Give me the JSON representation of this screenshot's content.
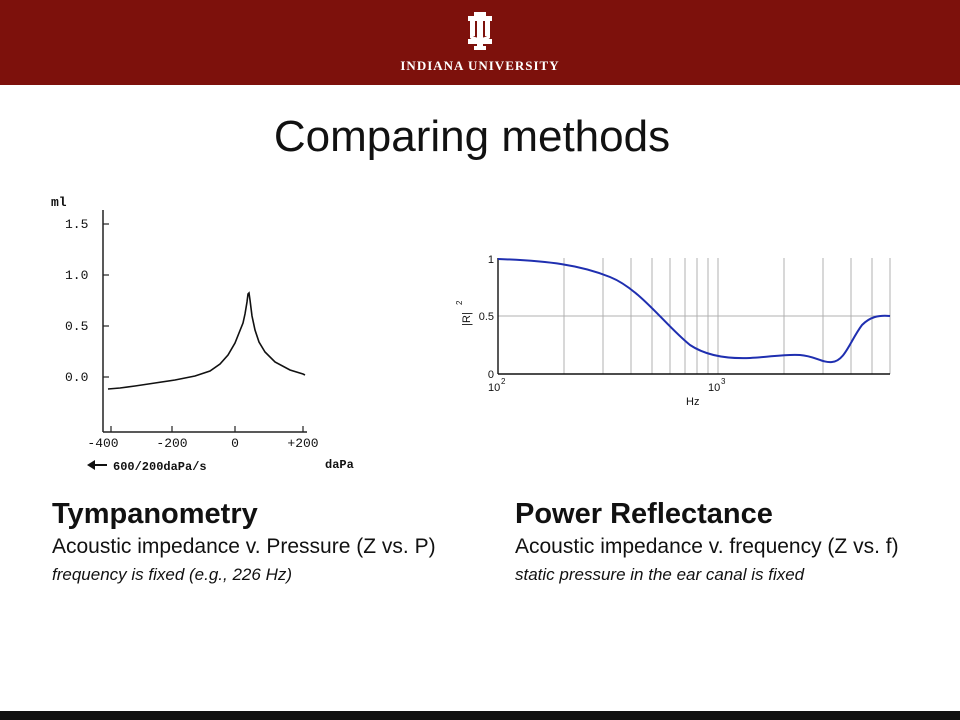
{
  "header": {
    "university": "INDIANA UNIVERSITY",
    "logo_icon": "iu-trident-icon",
    "banner_color": "#7d110c"
  },
  "slide": {
    "title": "Comparing methods"
  },
  "tympanogram": {
    "y_unit": "ml",
    "y_ticks": [
      "1.5",
      "1.0",
      "0.5",
      "0.0"
    ],
    "x_ticks": [
      "-400",
      "-200",
      "0",
      "+200"
    ],
    "x_unit": "daPa",
    "sweep_label": "600/200daPa/s",
    "arrow_icon": "left-arrow-icon"
  },
  "reflectance": {
    "y_label": "|R|",
    "y_label_exp": "2",
    "y_ticks": [
      "1",
      "0.5",
      "0"
    ],
    "x_ticks": [
      {
        "base": "10",
        "exp": "2"
      },
      {
        "base": "10",
        "exp": "3"
      }
    ],
    "x_label": "Hz",
    "curve_color": "#1f2fb0"
  },
  "left": {
    "heading": "Tympanometry",
    "description": "Acoustic impedance v. Pressure (Z vs. P)",
    "note": "frequency is fixed (e.g., 226 Hz)"
  },
  "right": {
    "heading": "Power Reflectance",
    "description": "Acoustic impedance v. frequency (Z vs. f)",
    "note": "static pressure in the ear canal is fixed"
  }
}
